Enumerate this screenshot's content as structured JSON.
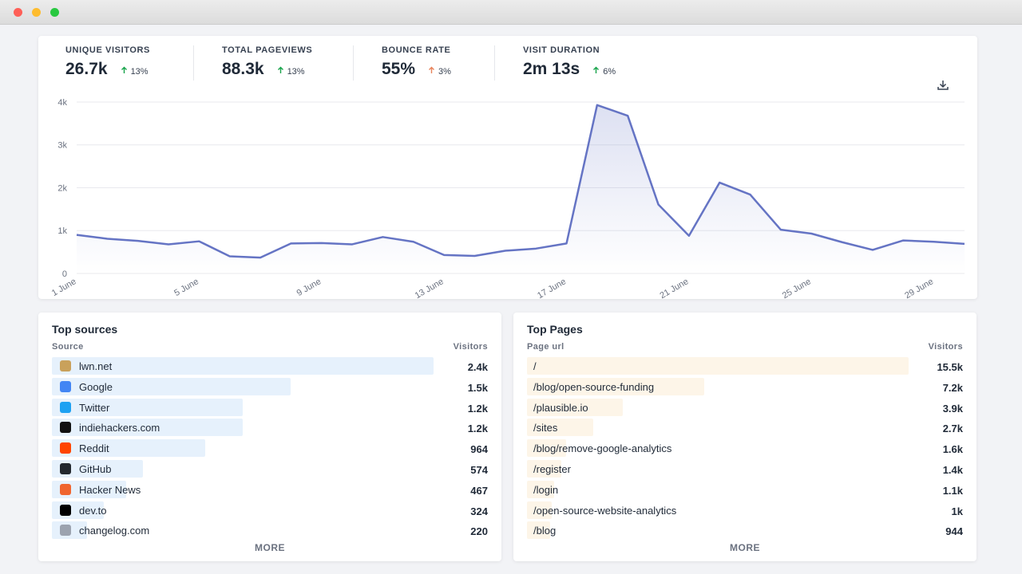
{
  "stats": [
    {
      "label": "UNIQUE VISITORS",
      "value": "26.7k",
      "change": "13%",
      "color": "#16a34a"
    },
    {
      "label": "TOTAL PAGEVIEWS",
      "value": "88.3k",
      "change": "13%",
      "color": "#16a34a"
    },
    {
      "label": "BOUNCE RATE",
      "value": "55%",
      "change": "3%",
      "color": "#e8835a"
    },
    {
      "label": "VISIT DURATION",
      "value": "2m 13s",
      "change": "6%",
      "color": "#16a34a"
    }
  ],
  "chart_data": {
    "type": "line",
    "categories": [
      "1 June",
      null,
      null,
      null,
      "5 June",
      null,
      null,
      null,
      "9 June",
      null,
      null,
      null,
      "13 June",
      null,
      null,
      null,
      "17 June",
      null,
      null,
      null,
      "21 June",
      null,
      null,
      null,
      "25 June",
      null,
      null,
      null,
      "29 June",
      null
    ],
    "series": [
      {
        "color": "#6574c4",
        "values": [
          900,
          810,
          760,
          680,
          750,
          400,
          370,
          700,
          710,
          680,
          850,
          740,
          430,
          410,
          530,
          580,
          700,
          3930,
          3680,
          1610,
          880,
          2120,
          1840,
          1020,
          930,
          730,
          550,
          770,
          740,
          690
        ]
      }
    ],
    "ylim": [
      0,
      4000
    ],
    "yticks": [
      0,
      {
        "value": 1000,
        "label": "1k"
      },
      {
        "value": 2000,
        "label": "2k"
      },
      {
        "value": 3000,
        "label": "3k"
      },
      {
        "value": 4000,
        "label": "4k"
      }
    ],
    "grid": true
  },
  "sources": {
    "title": "Top sources",
    "column_headers": [
      "Source",
      "Visitors"
    ],
    "rows": [
      "lwn.net",
      "Google",
      "Twitter",
      "indiehackers.com",
      "Reddit",
      "GitHub",
      "Hacker News",
      "dev.to",
      "changelog.com"
    ],
    "values": [
      2400,
      1500,
      1200,
      1200,
      964,
      574,
      467,
      324,
      220
    ],
    "value_labels": [
      "2.4k",
      "1.5k",
      "1.2k",
      "1.2k",
      "964",
      "574",
      "467",
      "324",
      "220"
    ],
    "color": "#e6f1fc",
    "more": "MORE"
  },
  "pages": {
    "title": "Top Pages",
    "column_headers": [
      "Page url",
      "Visitors"
    ],
    "rows": [
      "/",
      "/blog/open-source-funding",
      "/plausible.io",
      "/sites",
      "/blog/remove-google-analytics",
      "/register",
      "/login",
      "/open-source-website-analytics",
      "/blog"
    ],
    "values": [
      15500,
      7200,
      3900,
      2700,
      1600,
      1400,
      1100,
      1000,
      944
    ],
    "value_labels": [
      "15.5k",
      "7.2k",
      "3.9k",
      "2.7k",
      "1.6k",
      "1.4k",
      "1.1k",
      "1k",
      "944"
    ],
    "color": "#fdf5e8",
    "more": "MORE"
  }
}
